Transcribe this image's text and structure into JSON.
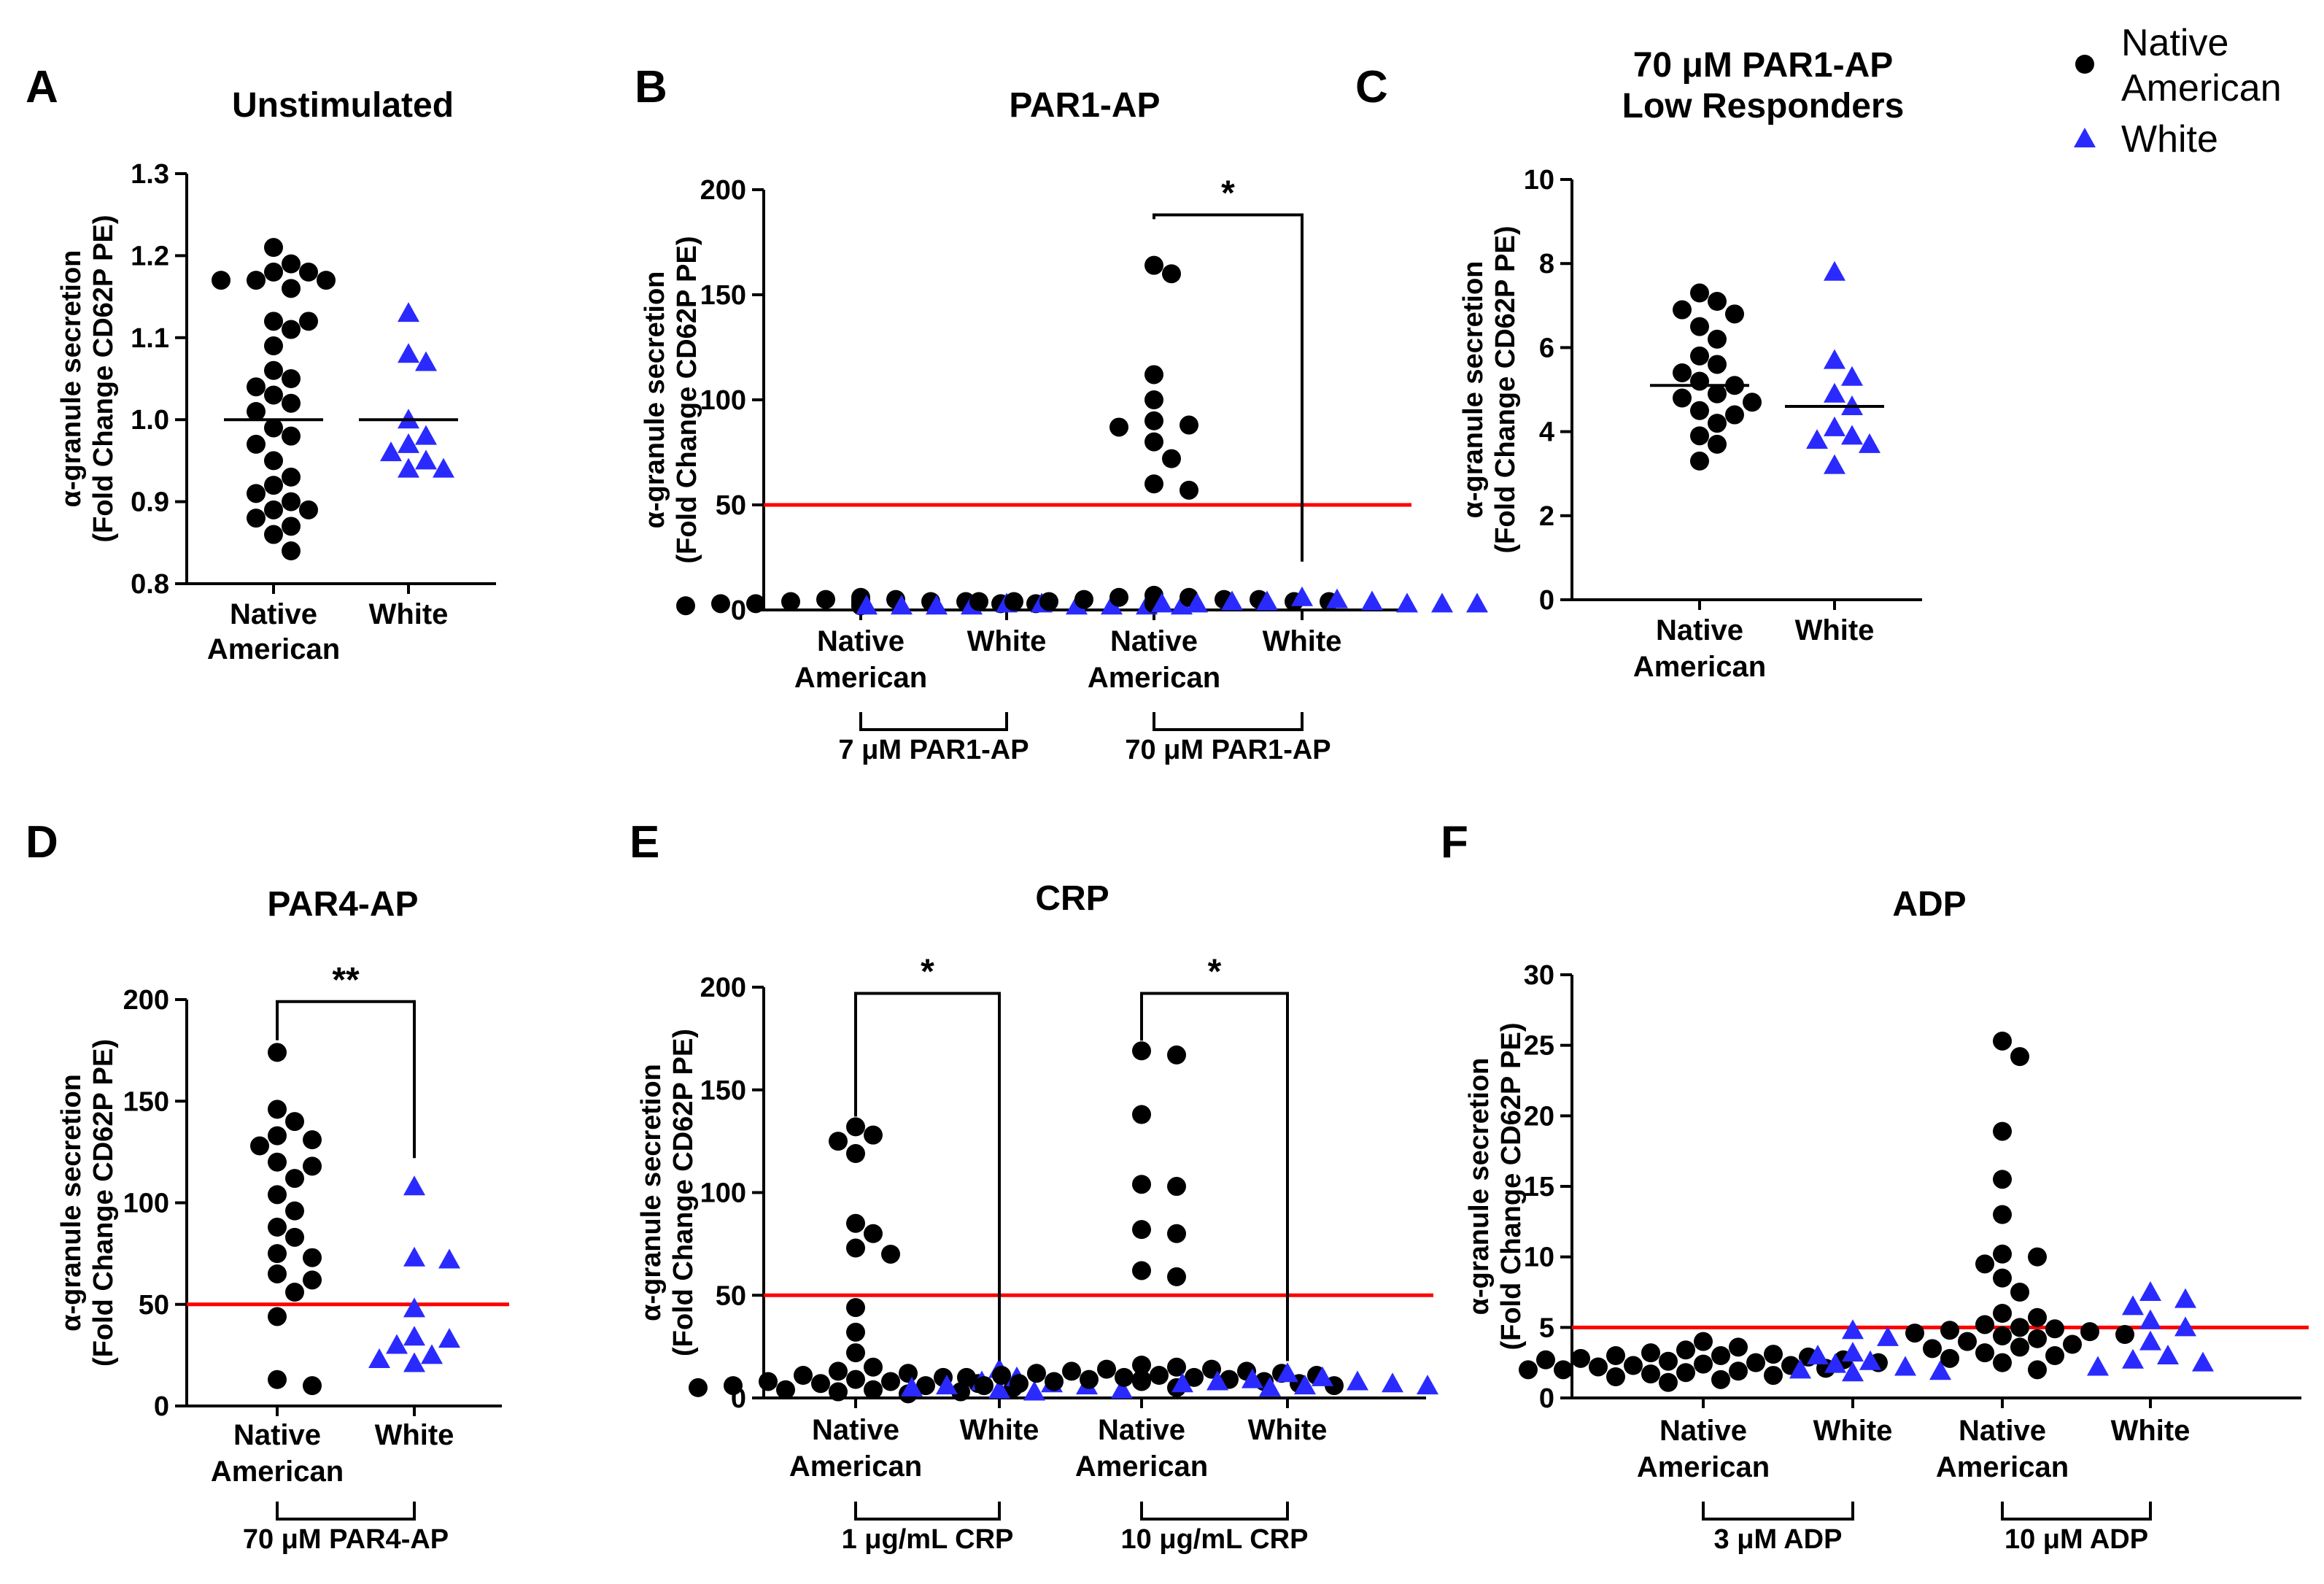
{
  "legend": [
    {
      "label": "Native\nAmerican",
      "marker": "circle",
      "color": "#000000"
    },
    {
      "label": "White",
      "marker": "triangle",
      "color": "#2a2aff"
    }
  ],
  "threshold_color": "#ff0000",
  "chart_data": [
    {
      "panel": "A",
      "type": "scatter",
      "title": [
        "Unstimulated"
      ],
      "ylabel": [
        "α-granule secretion",
        "(Fold  Change CD62P PE)"
      ],
      "ylim": [
        0.8,
        1.3
      ],
      "yticks": [
        "0.8",
        "0.9",
        "1.0",
        "1.1",
        "1.2",
        "1.3"
      ],
      "categories": [
        {
          "label": [
            "Native",
            "American"
          ],
          "group": "Native American",
          "mean": 1.0,
          "values": [
            1.21,
            1.19,
            1.18,
            1.18,
            1.17,
            1.17,
            1.17,
            1.16,
            1.12,
            1.12,
            1.11,
            1.09,
            1.06,
            1.05,
            1.04,
            1.03,
            1.02,
            1.01,
            0.99,
            0.98,
            0.97,
            0.95,
            0.93,
            0.92,
            0.91,
            0.9,
            0.89,
            0.89,
            0.88,
            0.87,
            0.86,
            0.84
          ]
        },
        {
          "label": [
            "White"
          ],
          "group": "White",
          "mean": 1.0,
          "values": [
            1.13,
            1.08,
            1.07,
            1.0,
            0.98,
            0.97,
            0.96,
            0.95,
            0.94,
            0.94
          ]
        }
      ],
      "groups": [],
      "threshold": null,
      "significance": []
    },
    {
      "panel": "B",
      "type": "scatter",
      "title": [
        "PAR1-AP"
      ],
      "ylabel": [
        "α-granule secretion",
        "(Fold  Change CD62P PE)"
      ],
      "ylim": [
        0,
        200
      ],
      "yticks": [
        "0",
        "50",
        "100",
        "150",
        "200"
      ],
      "categories": [
        {
          "label": [
            "Native",
            "American"
          ],
          "group": "Native American",
          "values": [
            6,
            5,
            5,
            4,
            4,
            4,
            3,
            3,
            3,
            3,
            2,
            2,
            2,
            3,
            4,
            5
          ]
        },
        {
          "label": [
            "White"
          ],
          "group": "White",
          "values": [
            3,
            3,
            2,
            2,
            2,
            2,
            2,
            2,
            2,
            2
          ]
        },
        {
          "label": [
            "Native",
            "American"
          ],
          "group": "Native American",
          "values": [
            164,
            160,
            112,
            100,
            90,
            88,
            87,
            80,
            72,
            60,
            57,
            7,
            6,
            6,
            5,
            5,
            5,
            4,
            4,
            4,
            4,
            4,
            3,
            3,
            3,
            3,
            3
          ]
        },
        {
          "label": [
            "White"
          ],
          "group": "White",
          "values": [
            6,
            5,
            4,
            4,
            4,
            3,
            3,
            3,
            3,
            3
          ]
        }
      ],
      "groups": [
        {
          "label": "7 μM   PAR1-AP",
          "from": 0,
          "to": 1
        },
        {
          "label": "70 μM   PAR1-AP",
          "from": 2,
          "to": 3
        }
      ],
      "threshold": 50,
      "significance": [
        {
          "from": 2,
          "to": 3,
          "label": "*",
          "y": 188,
          "left_end": 186,
          "right_end": 23
        }
      ]
    },
    {
      "panel": "C",
      "type": "scatter",
      "title": [
        "70 μM PAR1-AP",
        "Low  Responders"
      ],
      "ylabel": [
        "α-granule secretion",
        "(Fold  Change CD62P PE)"
      ],
      "ylim": [
        0,
        10
      ],
      "yticks": [
        "0",
        "2",
        "4",
        "6",
        "8",
        "10"
      ],
      "categories": [
        {
          "label": [
            "Native",
            "American"
          ],
          "group": "Native American",
          "mean": 5.1,
          "values": [
            7.3,
            7.1,
            6.9,
            6.8,
            6.5,
            6.2,
            5.8,
            5.6,
            5.4,
            5.2,
            5.1,
            4.9,
            4.8,
            4.7,
            4.5,
            4.4,
            4.2,
            3.9,
            3.7,
            3.3
          ]
        },
        {
          "label": [
            "White"
          ],
          "group": "White",
          "mean": 4.6,
          "values": [
            7.8,
            5.7,
            5.3,
            4.9,
            4.6,
            4.1,
            3.9,
            3.8,
            3.7,
            3.2
          ]
        }
      ],
      "groups": [],
      "threshold": null,
      "significance": []
    },
    {
      "panel": "D",
      "type": "scatter",
      "title": [
        "PAR4-AP"
      ],
      "ylabel": [
        "α-granule secretion",
        "(Fold  Change CD62P PE)"
      ],
      "ylim": [
        0,
        200
      ],
      "yticks": [
        "0",
        "50",
        "100",
        "150",
        "200"
      ],
      "categories": [
        {
          "label": [
            "Native",
            "American"
          ],
          "group": "Native American",
          "values": [
            174,
            146,
            140,
            133,
            131,
            128,
            120,
            118,
            112,
            104,
            96,
            88,
            83,
            75,
            73,
            65,
            62,
            56,
            44,
            13,
            10
          ]
        },
        {
          "label": [
            "White"
          ],
          "group": "White",
          "values": [
            108,
            73,
            72,
            48,
            34,
            33,
            30,
            25,
            23,
            21
          ]
        }
      ],
      "groups": [
        {
          "label": "70 μM   PAR4-AP",
          "from": 0,
          "to": 1
        }
      ],
      "threshold": 50,
      "significance": [
        {
          "from": 0,
          "to": 1,
          "label": "**",
          "y": 199,
          "left_end": 180,
          "right_end": 122
        }
      ]
    },
    {
      "panel": "E",
      "type": "scatter",
      "title": [
        "CRP"
      ],
      "ylabel": [
        "α-granule secretion",
        "(Fold  Change CD62P PE)"
      ],
      "ylim": [
        0,
        200
      ],
      "yticks": [
        "0",
        "50",
        "100",
        "150",
        "200"
      ],
      "categories": [
        {
          "label": [
            "Native",
            "American"
          ],
          "group": "Native American",
          "values": [
            132,
            128,
            125,
            119,
            85,
            80,
            73,
            70,
            44,
            32,
            22,
            15,
            13,
            12,
            11,
            10,
            9,
            8,
            8,
            7,
            7,
            6,
            6,
            5,
            5,
            4,
            4,
            3,
            3,
            2
          ]
        },
        {
          "label": [
            "White"
          ],
          "group": "White",
          "values": [
            14,
            10,
            8,
            7,
            6,
            6,
            5,
            4,
            4,
            3
          ]
        },
        {
          "label": [
            "Native",
            "American"
          ],
          "group": "Native American",
          "values": [
            169,
            167,
            138,
            104,
            103,
            82,
            80,
            62,
            59,
            16,
            15,
            14,
            14,
            13,
            13,
            12,
            12,
            11,
            11,
            11,
            10,
            10,
            10,
            9,
            9,
            9,
            8,
            8,
            8,
            7,
            7,
            6,
            6,
            5
          ]
        },
        {
          "label": [
            "White"
          ],
          "group": "White",
          "values": [
            12,
            10,
            9,
            8,
            8,
            7,
            7,
            6,
            6,
            5
          ]
        }
      ],
      "groups": [
        {
          "label": "1 μg/mL   CRP",
          "from": 0,
          "to": 1
        },
        {
          "label": "10 μg/mL   CRP",
          "from": 2,
          "to": 3
        }
      ],
      "threshold": 50,
      "significance": [
        {
          "from": 0,
          "to": 1,
          "label": "*",
          "y": 197,
          "left_end": 137,
          "right_end": 18
        },
        {
          "from": 2,
          "to": 3,
          "label": "*",
          "y": 197,
          "left_end": 174,
          "right_end": 18
        }
      ]
    },
    {
      "panel": "F",
      "type": "scatter",
      "title": [
        "ADP"
      ],
      "ylabel": [
        "α-granule secretion",
        "(Fold  Change CD62P PE)"
      ],
      "ylim": [
        0,
        30
      ],
      "yticks": [
        "0",
        "5",
        "10",
        "15",
        "20",
        "25",
        "30"
      ],
      "categories": [
        {
          "label": [
            "Native",
            "American"
          ],
          "group": "Native American",
          "values": [
            4.0,
            3.6,
            3.4,
            3.2,
            3.1,
            3.0,
            3.0,
            2.9,
            2.8,
            2.7,
            2.7,
            2.6,
            2.5,
            2.5,
            2.4,
            2.3,
            2.3,
            2.2,
            2.1,
            2.0,
            2.0,
            1.9,
            1.8,
            1.7,
            1.6,
            1.5,
            1.3,
            1.1
          ]
        },
        {
          "label": [
            "White"
          ],
          "group": "White",
          "values": [
            4.8,
            4.3,
            3.2,
            3.0,
            2.6,
            2.4,
            2.2,
            2.0,
            1.9,
            1.8
          ]
        },
        {
          "label": [
            "Native",
            "American"
          ],
          "group": "Native American",
          "values": [
            25.3,
            24.2,
            18.9,
            15.5,
            13.0,
            10.2,
            10.0,
            9.5,
            8.5,
            7.5,
            6.0,
            5.7,
            5.2,
            5.0,
            4.9,
            4.8,
            4.7,
            4.6,
            4.5,
            4.4,
            4.2,
            4.0,
            3.8,
            3.6,
            3.5,
            3.2,
            3.0,
            2.8,
            2.5,
            2.0
          ]
        },
        {
          "label": [
            "White"
          ],
          "group": "White",
          "values": [
            7.5,
            7.0,
            6.5,
            5.5,
            5.0,
            4.0,
            3.0,
            2.7,
            2.5,
            2.2
          ]
        }
      ],
      "groups": [
        {
          "label": "3 μM   ADP",
          "from": 0,
          "to": 1
        },
        {
          "label": "10 μM   ADP",
          "from": 2,
          "to": 3
        }
      ],
      "threshold": 5,
      "significance": []
    }
  ]
}
